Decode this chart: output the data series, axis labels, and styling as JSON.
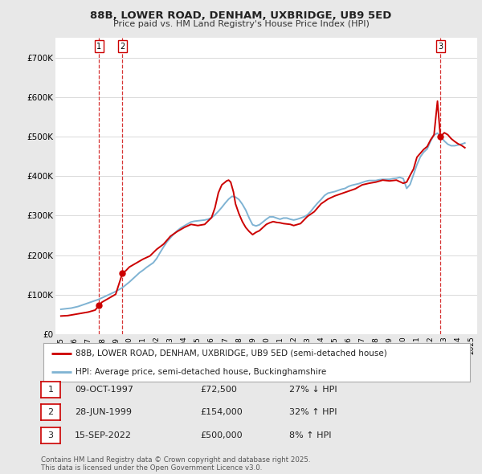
{
  "title": "88B, LOWER ROAD, DENHAM, UXBRIDGE, UB9 5ED",
  "subtitle": "Price paid vs. HM Land Registry's House Price Index (HPI)",
  "ylim": [
    0,
    750000
  ],
  "yticks": [
    0,
    100000,
    200000,
    300000,
    400000,
    500000,
    600000,
    700000
  ],
  "ytick_labels": [
    "£0",
    "£100K",
    "£200K",
    "£300K",
    "£400K",
    "£500K",
    "£600K",
    "£700K"
  ],
  "property_color": "#cc0000",
  "hpi_color": "#7fb3d3",
  "background_color": "#e8e8e8",
  "plot_bg_color": "#ffffff",
  "legend_property": "88B, LOWER ROAD, DENHAM, UXBRIDGE, UB9 5ED (semi-detached house)",
  "legend_hpi": "HPI: Average price, semi-detached house, Buckinghamshire",
  "transactions": [
    {
      "num": 1,
      "date": "09-OCT-1997",
      "price": 72500,
      "change": "27% ↓ HPI",
      "year": 1997.78
    },
    {
      "num": 2,
      "date": "28-JUN-1999",
      "price": 154000,
      "change": "32% ↑ HPI",
      "year": 1999.49
    },
    {
      "num": 3,
      "date": "15-SEP-2022",
      "price": 500000,
      "change": "8% ↑ HPI",
      "year": 2022.71
    }
  ],
  "footnote1": "Contains HM Land Registry data © Crown copyright and database right 2025.",
  "footnote2": "This data is licensed under the Open Government Licence v3.0.",
  "hpi_data": {
    "years": [
      1995.0,
      1995.25,
      1995.5,
      1995.75,
      1996.0,
      1996.25,
      1996.5,
      1996.75,
      1997.0,
      1997.25,
      1997.5,
      1997.75,
      1998.0,
      1998.25,
      1998.5,
      1998.75,
      1999.0,
      1999.25,
      1999.5,
      1999.75,
      2000.0,
      2000.25,
      2000.5,
      2000.75,
      2001.0,
      2001.25,
      2001.5,
      2001.75,
      2002.0,
      2002.25,
      2002.5,
      2002.75,
      2003.0,
      2003.25,
      2003.5,
      2003.75,
      2004.0,
      2004.25,
      2004.5,
      2004.75,
      2005.0,
      2005.25,
      2005.5,
      2005.75,
      2006.0,
      2006.25,
      2006.5,
      2006.75,
      2007.0,
      2007.25,
      2007.5,
      2007.75,
      2008.0,
      2008.25,
      2008.5,
      2008.75,
      2009.0,
      2009.25,
      2009.5,
      2009.75,
      2010.0,
      2010.25,
      2010.5,
      2010.75,
      2011.0,
      2011.25,
      2011.5,
      2011.75,
      2012.0,
      2012.25,
      2012.5,
      2012.75,
      2013.0,
      2013.25,
      2013.5,
      2013.75,
      2014.0,
      2014.25,
      2014.5,
      2014.75,
      2015.0,
      2015.25,
      2015.5,
      2015.75,
      2016.0,
      2016.25,
      2016.5,
      2016.75,
      2017.0,
      2017.25,
      2017.5,
      2017.75,
      2018.0,
      2018.25,
      2018.5,
      2018.75,
      2019.0,
      2019.25,
      2019.5,
      2019.75,
      2020.0,
      2020.25,
      2020.5,
      2020.75,
      2021.0,
      2021.25,
      2021.5,
      2021.75,
      2022.0,
      2022.25,
      2022.5,
      2022.75,
      2023.0,
      2023.25,
      2023.5,
      2023.75,
      2024.0,
      2024.25,
      2024.5
    ],
    "values": [
      63000,
      64000,
      65000,
      66000,
      68000,
      70000,
      73000,
      76000,
      79000,
      82000,
      85000,
      88000,
      92000,
      96000,
      100000,
      104000,
      108000,
      113000,
      118000,
      125000,
      132000,
      140000,
      148000,
      156000,
      162000,
      169000,
      175000,
      181000,
      192000,
      207000,
      221000,
      234000,
      244000,
      254000,
      262000,
      269000,
      274000,
      279000,
      284000,
      286000,
      287000,
      288000,
      289000,
      291000,
      295000,
      302000,
      311000,
      321000,
      332000,
      342000,
      349000,
      347000,
      341000,
      329000,
      314000,
      294000,
      277000,
      274000,
      277000,
      284000,
      291000,
      297000,
      297000,
      294000,
      291000,
      294000,
      294000,
      291000,
      289000,
      291000,
      294000,
      297000,
      302000,
      311000,
      322000,
      332000,
      341000,
      351000,
      357000,
      359000,
      361000,
      364000,
      367000,
      369000,
      374000,
      377000,
      379000,
      381000,
      384000,
      387000,
      389000,
      389000,
      389000,
      391000,
      392000,
      392000,
      392000,
      394000,
      395000,
      397000,
      394000,
      369000,
      379000,
      404000,
      429000,
      449000,
      461000,
      469000,
      489000,
      504000,
      509000,
      499000,
      489000,
      481000,
      477000,
      477000,
      479000,
      481000,
      484000
    ]
  },
  "property_data": {
    "years": [
      1995.0,
      1995.5,
      1996.0,
      1996.5,
      1997.0,
      1997.5,
      1997.78,
      1998.0,
      1998.5,
      1999.0,
      1999.49,
      1999.75,
      2000.0,
      2000.5,
      2001.0,
      2001.5,
      2002.0,
      2002.5,
      2003.0,
      2003.5,
      2004.0,
      2004.5,
      2005.0,
      2005.5,
      2006.0,
      2006.25,
      2006.5,
      2006.75,
      2007.0,
      2007.1,
      2007.25,
      2007.4,
      2007.6,
      2007.75,
      2008.0,
      2008.25,
      2008.5,
      2008.75,
      2009.0,
      2009.25,
      2009.5,
      2009.75,
      2010.0,
      2010.25,
      2010.5,
      2010.75,
      2011.0,
      2011.25,
      2011.5,
      2011.75,
      2012.0,
      2012.5,
      2013.0,
      2013.5,
      2014.0,
      2014.5,
      2015.0,
      2015.5,
      2016.0,
      2016.5,
      2017.0,
      2017.5,
      2018.0,
      2018.5,
      2019.0,
      2019.5,
      2020.0,
      2020.25,
      2020.5,
      2020.75,
      2021.0,
      2021.25,
      2021.5,
      2021.75,
      2022.0,
      2022.25,
      2022.5,
      2022.71,
      2023.0,
      2023.25,
      2023.5,
      2023.75,
      2024.0,
      2024.25,
      2024.5
    ],
    "values": [
      46000,
      47000,
      50000,
      53000,
      56000,
      61000,
      72500,
      81000,
      91000,
      101000,
      154000,
      161000,
      170000,
      180000,
      190000,
      198000,
      215000,
      228000,
      248000,
      260000,
      270000,
      278000,
      275000,
      278000,
      295000,
      320000,
      358000,
      378000,
      385000,
      388000,
      390000,
      385000,
      360000,
      330000,
      305000,
      285000,
      270000,
      260000,
      252000,
      258000,
      262000,
      270000,
      278000,
      282000,
      285000,
      283000,
      282000,
      280000,
      279000,
      278000,
      275000,
      280000,
      298000,
      310000,
      330000,
      342000,
      350000,
      356000,
      362000,
      368000,
      378000,
      382000,
      385000,
      390000,
      388000,
      390000,
      382000,
      385000,
      402000,
      418000,
      448000,
      458000,
      468000,
      475000,
      492000,
      505000,
      590000,
      500000,
      510000,
      505000,
      495000,
      488000,
      482000,
      478000,
      472000
    ]
  }
}
